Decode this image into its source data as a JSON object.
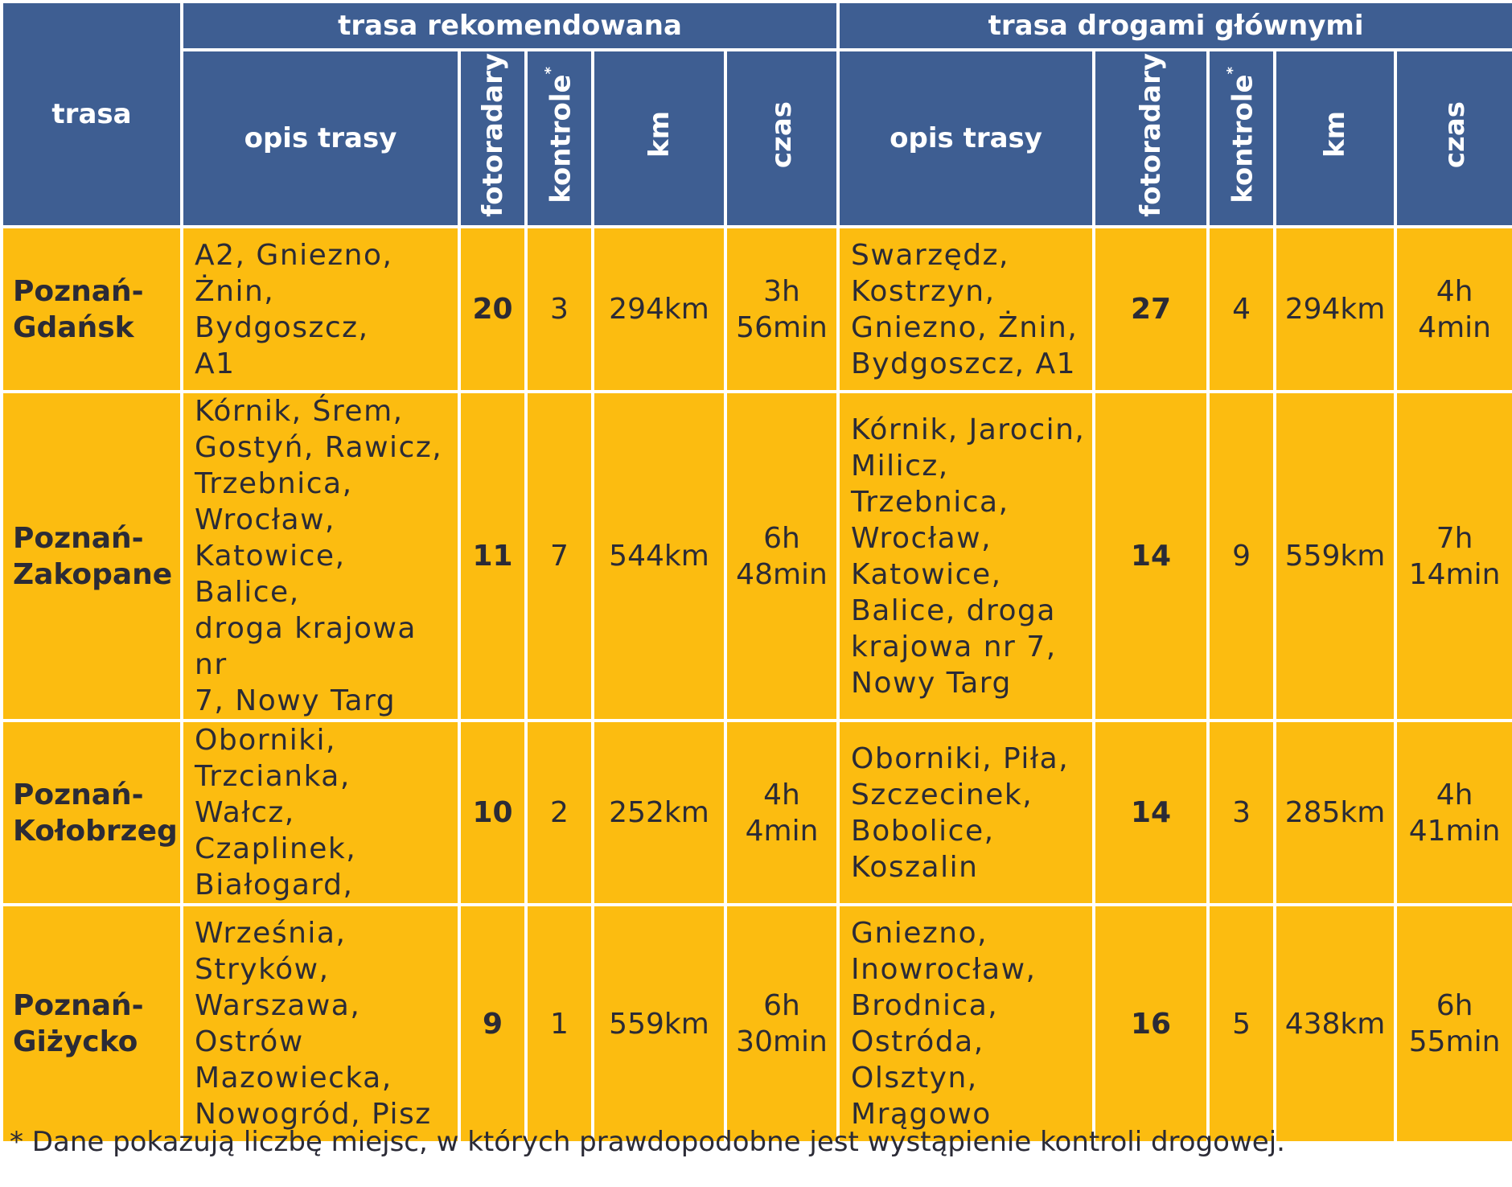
{
  "header": {
    "route_col": "trasa",
    "group_recommended": "trasa rekomendowana",
    "group_main_roads": "trasa drogami głównymi",
    "desc": "opis trasy",
    "speed_cameras": "fotoradary",
    "controls": "kontrole",
    "controls_mark": "*",
    "km": "km",
    "time": "czas"
  },
  "rows": [
    {
      "route": [
        "Poznań-",
        "Gdańsk"
      ],
      "rec": {
        "desc": [
          "A2, Gniezno,",
          "Żnin, Bydgoszcz,",
          "A1"
        ],
        "cameras": "20",
        "controls": "3",
        "km": "294km",
        "time": [
          "3h",
          "56min"
        ]
      },
      "main": {
        "desc": [
          "Swarzędz,",
          "Kostrzyn,",
          "Gniezno, Żnin,",
          "Bydgoszcz, A1"
        ],
        "cameras": "27",
        "controls": "4",
        "km": "294km",
        "time": [
          "4h",
          "4min"
        ]
      }
    },
    {
      "route": [
        "Poznań-",
        "Zakopane"
      ],
      "rec": {
        "desc": [
          "Kórnik, Śrem,",
          "Gostyń, Rawicz,",
          "Trzebnica,",
          "Wrocław,",
          "Katowice, Balice,",
          "droga krajowa nr",
          "7, Nowy Targ"
        ],
        "cameras": "11",
        "controls": "7",
        "km": "544km",
        "time": [
          "6h",
          "48min"
        ]
      },
      "main": {
        "desc": [
          "Kórnik, Jarocin,",
          "Milicz,",
          "Trzebnica,",
          "Wrocław,",
          "Katowice,",
          "Balice, droga",
          "krajowa nr 7,",
          "Nowy Targ"
        ],
        "cameras": "14",
        "controls": "9",
        "km": "559km",
        "time": [
          "7h",
          "14min"
        ]
      }
    },
    {
      "route": [
        "Poznań-",
        "Kołobrzeg"
      ],
      "rec": {
        "desc": [
          "Oborniki,",
          "Trzcianka, Wałcz,",
          "Czaplinek,",
          "Białogard,"
        ],
        "cameras": "10",
        "controls": "2",
        "km": "252km",
        "time": [
          "4h",
          "4min"
        ]
      },
      "main": {
        "desc": [
          "Oborniki, Piła,",
          "Szczecinek,",
          "Bobolice,",
          "Koszalin"
        ],
        "cameras": "14",
        "controls": "3",
        "km": "285km",
        "time": [
          "4h",
          "41min"
        ]
      }
    },
    {
      "route": [
        "Poznań-",
        "Giżycko"
      ],
      "rec": {
        "desc": [
          "Września,",
          "Stryków,",
          "Warszawa,",
          "Ostrów",
          "Mazowiecka,",
          "Nowogród, Pisz"
        ],
        "cameras": "9",
        "controls": "1",
        "km": "559km",
        "time": [
          "6h",
          "30min"
        ]
      },
      "main": {
        "desc": [
          "Gniezno,",
          "Inowrocław,",
          "Brodnica,",
          "Ostróda,",
          "Olsztyn,",
          "Mrągowo"
        ],
        "cameras": "16",
        "controls": "5",
        "km": "438km",
        "time": [
          "6h",
          "55min"
        ]
      }
    }
  ],
  "footnote": "* Dane pokazują liczbę miejsc, w których prawdopodobne jest wystąpienie kontroli drogowej.",
  "colors": {
    "header_bg": "#3e5e92",
    "body_bg": "#fcbc10",
    "text": "#2b2b36"
  }
}
